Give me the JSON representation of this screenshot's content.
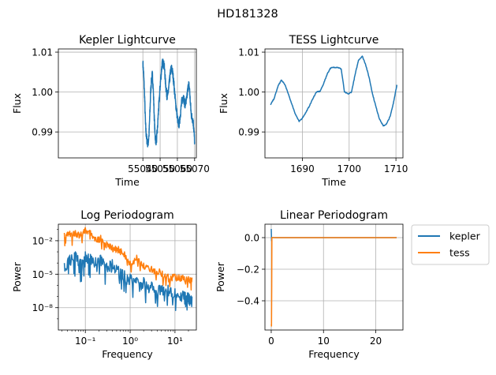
{
  "suptitle": "HD181328",
  "colors": {
    "kepler": "#1f77b4",
    "tess": "#ff7f0e",
    "grid": "#b0b0b0"
  },
  "chart_data": [
    {
      "id": "kepler-lc",
      "type": "line",
      "title": "Kepler Lightcurve",
      "xlabel": "Time",
      "ylabel": "Flux",
      "xlim": [
        54991,
        55071
      ],
      "ylim": [
        0.9835,
        1.0108
      ],
      "xticks": [
        {
          "v": 55040,
          "label": "55040"
        },
        {
          "v": 55050,
          "label": "55050"
        },
        {
          "v": 55060,
          "label": "55060"
        },
        {
          "v": 55070,
          "label": "55070"
        }
      ],
      "yticks": [
        {
          "v": 0.99,
          "label": "0.99"
        },
        {
          "v": 1.0,
          "label": "1.00"
        },
        {
          "v": 1.01,
          "label": "1.01"
        }
      ],
      "grid": true,
      "series": [
        {
          "key": "kepler",
          "noise": 0.0011,
          "x": [
            55040.0,
            55040.5,
            55041.0,
            55041.5,
            55042.0,
            55042.5,
            55043.0,
            55043.5,
            55044.0,
            55044.5,
            55045.0,
            55045.5,
            55046.0,
            55046.5,
            55047.0,
            55047.5,
            55048.0,
            55048.5,
            55049.0,
            55049.5,
            55050.0,
            55050.5,
            55051.0,
            55051.5,
            55052.0,
            55052.5,
            55053.0,
            55053.5,
            55054.0,
            55054.5,
            55055.0,
            55055.5,
            55056.0,
            55056.5,
            55057.0,
            55057.5,
            55058.0,
            55058.5,
            55059.0,
            55059.5,
            55060.0,
            55060.5,
            55061.0,
            55061.5,
            55062.0,
            55062.5,
            55063.0,
            55063.5,
            55064.0,
            55064.5,
            55065.0,
            55065.5,
            55066.0,
            55066.5,
            55067.0,
            55067.5,
            55068.0,
            55068.5,
            55069.0,
            55069.5,
            55070.0
          ],
          "y": [
            1.0075,
            1.004,
            0.999,
            0.992,
            0.989,
            0.9875,
            0.987,
            0.989,
            0.994,
            1.0,
            1.003,
            1.0045,
            1.001,
            0.995,
            0.9895,
            0.9875,
            0.9885,
            0.991,
            0.995,
            0.998,
            1.0015,
            1.004,
            1.0065,
            1.0075,
            1.007,
            1.006,
            1.003,
            1.0005,
            0.999,
            0.9995,
            1.001,
            1.003,
            1.005,
            1.006,
            1.0055,
            1.004,
            1.002,
            0.9995,
            0.997,
            0.9955,
            0.9935,
            0.992,
            0.992,
            0.9935,
            0.9955,
            0.9975,
            0.9985,
            0.999,
            0.9975,
            0.997,
            0.9975,
            0.9985,
            1.0005,
            1.002,
            1.001,
            0.9975,
            0.9945,
            0.9935,
            0.993,
            0.991,
            0.9875
          ]
        }
      ]
    },
    {
      "id": "tess-lc",
      "type": "line",
      "title": "TESS Lightcurve",
      "xlabel": "Time",
      "ylabel": "Flux",
      "xlim": [
        1682.0,
        1711.5
      ],
      "ylim": [
        0.9835,
        1.0108
      ],
      "xticks": [
        {
          "v": 1690,
          "label": "1690"
        },
        {
          "v": 1700,
          "label": "1700"
        },
        {
          "v": 1710,
          "label": "1710"
        }
      ],
      "yticks": [
        {
          "v": 0.99,
          "label": "0.99"
        },
        {
          "v": 1.0,
          "label": "1.00"
        },
        {
          "v": 1.01,
          "label": "1.01"
        }
      ],
      "grid": true,
      "series": [
        {
          "key": "kepler",
          "noise": 0.00012,
          "x": [
            1683.2,
            1684.0,
            1684.8,
            1685.5,
            1686.3,
            1687.0,
            1687.8,
            1688.5,
            1689.3,
            1690.0,
            1690.8,
            1691.5,
            1692.3,
            1693.0,
            1693.8,
            1694.5,
            1695.3,
            1696.0,
            1696.8,
            1697.5,
            1698.3,
            1699.0,
            1699.8,
            1700.5,
            1701.3,
            1702.0,
            1702.8,
            1703.5,
            1704.3,
            1705.0,
            1705.8,
            1706.5,
            1707.3,
            1708.0,
            1708.8,
            1709.5,
            1710.2
          ],
          "y": [
            0.9968,
            0.9985,
            1.0015,
            1.003,
            1.0018,
            0.9995,
            0.9968,
            0.9945,
            0.9926,
            0.9935,
            0.995,
            0.9965,
            0.9985,
            1.0,
            1.0002,
            1.002,
            1.0045,
            1.006,
            1.0062,
            1.0062,
            1.0058,
            1.0,
            0.9995,
            1.0,
            1.0045,
            1.008,
            1.009,
            1.007,
            1.0035,
            0.9995,
            0.996,
            0.9932,
            0.9915,
            0.992,
            0.994,
            0.9975,
            1.0018
          ]
        }
      ]
    },
    {
      "id": "log-pgram",
      "type": "line",
      "title": "Log Periodogram",
      "xlabel": "Frequency",
      "ylabel": "Power",
      "xscale": "log",
      "yscale": "log",
      "xlim": [
        0.025,
        30
      ],
      "ylim": [
        1e-10,
        0.3
      ],
      "xticks": [
        {
          "v": 0.1,
          "label": "10⁻¹"
        },
        {
          "v": 1,
          "label": "10⁰"
        },
        {
          "v": 10,
          "label": "10¹"
        }
      ],
      "yticks": [
        {
          "v": 1e-08,
          "label": "10⁻⁸"
        },
        {
          "v": 1e-05,
          "label": "10⁻⁵"
        },
        {
          "v": 0.01,
          "label": "10⁻²"
        }
      ],
      "grid": true,
      "series": [
        {
          "key": "kepler",
          "noise_decades": 1.0,
          "x": [
            0.034,
            0.045,
            0.06,
            0.08,
            0.1,
            0.13,
            0.17,
            0.22,
            0.3,
            0.4,
            0.55,
            0.75,
            1.0,
            1.4,
            2.0,
            3.0,
            4.5,
            7.0,
            10,
            15,
            20,
            24
          ],
          "y": [
            0.0001,
            0.0005,
            0.001,
            0.0002,
            0.001,
            0.0006,
            0.0003,
            0.0005,
            0.0001,
            0.0002,
            5e-05,
            2e-05,
            1e-05,
            5e-06,
            5e-06,
            2e-06,
            1e-06,
            1e-06,
            5e-07,
            3e-07,
            2e-07,
            1e-07
          ]
        },
        {
          "key": "tess",
          "noise_decades": 0.6,
          "x": [
            0.034,
            0.045,
            0.06,
            0.08,
            0.1,
            0.13,
            0.17,
            0.22,
            0.3,
            0.4,
            0.55,
            0.75,
            1.0,
            1.4,
            2.0,
            3.0,
            4.5,
            7.0,
            10,
            15,
            20,
            24
          ],
          "y": [
            0.05,
            0.07,
            0.08,
            0.06,
            0.15,
            0.08,
            0.02,
            0.03,
            0.008,
            0.004,
            0.003,
            0.001,
            0.00015,
            0.0005,
            0.0001,
            5e-05,
            3e-05,
            1e-05,
            1e-05,
            8e-06,
            6e-06,
            5e-06
          ]
        }
      ]
    },
    {
      "id": "lin-pgram",
      "type": "line",
      "title": "Linear Periodogram",
      "xlabel": "Frequency",
      "ylabel": "Power",
      "xlim": [
        -1.2,
        25.2
      ],
      "ylim": [
        -0.585,
        0.085
      ],
      "xticks": [
        {
          "v": 0,
          "label": "0"
        },
        {
          "v": 10,
          "label": "10"
        },
        {
          "v": 20,
          "label": "20"
        }
      ],
      "yticks": [
        {
          "v": 0.0,
          "label": "0.0"
        },
        {
          "v": -0.2,
          "label": "−0.2"
        },
        {
          "v": -0.4,
          "label": "−0.4"
        }
      ],
      "grid": true,
      "series": [
        {
          "key": "kepler",
          "x": [
            0.0,
            0.03,
            0.06,
            0.1,
            0.15,
            0.25,
            0.5,
            1.0,
            5,
            10,
            15,
            20,
            24
          ],
          "y": [
            0.055,
            0.01,
            -0.02,
            0.003,
            0.001,
            0.0005,
            0.0002,
            0.0001,
            0.0,
            0.0,
            0.0,
            0.0,
            0.0
          ]
        },
        {
          "key": "tess",
          "x": [
            0.0,
            0.05,
            0.1,
            0.12,
            0.15,
            0.2,
            0.4,
            1.0,
            5,
            10,
            15,
            20,
            24
          ],
          "y": [
            -0.55,
            -0.56,
            -0.3,
            0.0,
            0.0,
            0.001,
            0.0005,
            0.0002,
            0.0,
            0.0,
            0.0,
            0.0,
            0.0
          ]
        }
      ]
    }
  ],
  "legend": {
    "position": "right of Linear Periodogram",
    "entries": [
      {
        "key": "kepler",
        "label": "kepler"
      },
      {
        "key": "tess",
        "label": "tess"
      }
    ]
  }
}
